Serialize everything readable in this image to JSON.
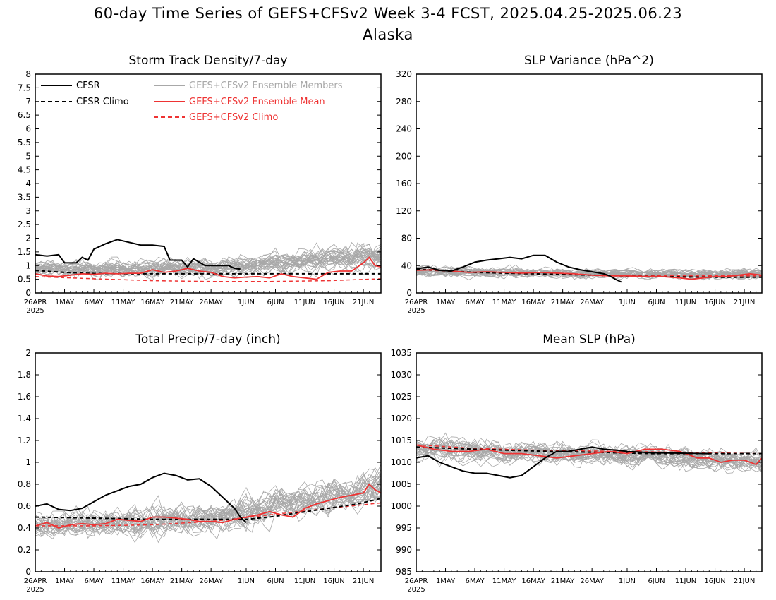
{
  "figure": {
    "title_line1": "60-day Time Series of GEFS+CFSv2 Week 3-4 FCST, 2025.04.25-2025.06.23",
    "title_line2": "Alaska"
  },
  "colors": {
    "cfsr": "#000000",
    "members": "#a8a8a8",
    "ens_mean": "#ee3333",
    "ens_climo": "#ee3333"
  },
  "legend": {
    "cfsr": "CFSR",
    "cfsr_climo": "CFSR Climo",
    "members": "GEFS+CFSv2 Ensemble Members",
    "ens_mean": "GEFS+CFSv2 Ensemble Mean",
    "ens_climo": "GEFS+CFSv2 Climo"
  },
  "x_ticks": [
    "26APR",
    "1MAY",
    "6MAY",
    "11MAY",
    "16MAY",
    "21MAY",
    "26MAY",
    "1JUN",
    "6JUN",
    "11JUN",
    "16JUN",
    "21JUN"
  ],
  "x_year_label": "2025",
  "chart_data": [
    {
      "type": "line",
      "title": "Storm Track Density/7-day",
      "xlabel": "",
      "ylabel": "",
      "x_range_days": [
        0,
        59
      ],
      "ylim": [
        0,
        8
      ],
      "yticks": [
        "0",
        "0.5",
        "1",
        "1.5",
        "2",
        "2.5",
        "3",
        "3.5",
        "4",
        "4.5",
        "5",
        "5.5",
        "6",
        "6.5",
        "7",
        "7.5",
        "8"
      ],
      "cfsr": [
        [
          0,
          1.4
        ],
        [
          2,
          1.35
        ],
        [
          4,
          1.4
        ],
        [
          5,
          1.1
        ],
        [
          7,
          1.1
        ],
        [
          8,
          1.3
        ],
        [
          9,
          1.2
        ],
        [
          10,
          1.6
        ],
        [
          12,
          1.8
        ],
        [
          14,
          1.95
        ],
        [
          16,
          1.85
        ],
        [
          18,
          1.75
        ],
        [
          20,
          1.75
        ],
        [
          22,
          1.7
        ],
        [
          23,
          1.2
        ],
        [
          25,
          1.2
        ],
        [
          26,
          0.95
        ],
        [
          27,
          1.25
        ],
        [
          29,
          1.0
        ],
        [
          33,
          1.0
        ],
        [
          34,
          0.9
        ],
        [
          35,
          0.87
        ]
      ],
      "cfsr_climo": [
        [
          0,
          0.82
        ],
        [
          5,
          0.75
        ],
        [
          10,
          0.71
        ],
        [
          20,
          0.7
        ],
        [
          30,
          0.7
        ],
        [
          45,
          0.7
        ],
        [
          59,
          0.7
        ]
      ],
      "ens_mean": [
        [
          0,
          0.7
        ],
        [
          2,
          0.62
        ],
        [
          4,
          0.6
        ],
        [
          6,
          0.65
        ],
        [
          8,
          0.7
        ],
        [
          10,
          0.68
        ],
        [
          12,
          0.72
        ],
        [
          14,
          0.7
        ],
        [
          16,
          0.72
        ],
        [
          18,
          0.72
        ],
        [
          20,
          0.85
        ],
        [
          22,
          0.75
        ],
        [
          24,
          0.8
        ],
        [
          26,
          0.9
        ],
        [
          28,
          0.8
        ],
        [
          30,
          0.75
        ],
        [
          32,
          0.6
        ],
        [
          34,
          0.55
        ],
        [
          36,
          0.58
        ],
        [
          38,
          0.6
        ],
        [
          40,
          0.55
        ],
        [
          42,
          0.7
        ],
        [
          44,
          0.6
        ],
        [
          46,
          0.55
        ],
        [
          48,
          0.5
        ],
        [
          50,
          0.75
        ],
        [
          52,
          0.8
        ],
        [
          54,
          0.8
        ],
        [
          56,
          1.1
        ],
        [
          57,
          1.3
        ],
        [
          58,
          1.0
        ],
        [
          59,
          0.95
        ]
      ],
      "ens_climo": [
        [
          0,
          0.6
        ],
        [
          10,
          0.52
        ],
        [
          20,
          0.45
        ],
        [
          30,
          0.42
        ],
        [
          40,
          0.42
        ],
        [
          50,
          0.45
        ],
        [
          59,
          0.52
        ]
      ],
      "members": {
        "count": 30,
        "center": [
          [
            0,
            0.9
          ],
          [
            30,
            0.9
          ],
          [
            59,
            1.4
          ]
        ],
        "spread": [
          [
            0,
            0.5
          ],
          [
            30,
            0.55
          ],
          [
            59,
            0.9
          ]
        ],
        "min": 0.05
      }
    },
    {
      "type": "line",
      "title": "SLP Variance (hPa^2)",
      "xlabel": "",
      "ylabel": "",
      "x_range_days": [
        0,
        59
      ],
      "ylim": [
        0,
        320
      ],
      "yticks": [
        "0",
        "40",
        "80",
        "120",
        "160",
        "200",
        "240",
        "280",
        "320"
      ],
      "cfsr": [
        [
          0,
          35
        ],
        [
          2,
          38
        ],
        [
          4,
          33
        ],
        [
          6,
          32
        ],
        [
          8,
          38
        ],
        [
          10,
          45
        ],
        [
          12,
          48
        ],
        [
          14,
          50
        ],
        [
          16,
          52
        ],
        [
          18,
          50
        ],
        [
          20,
          55
        ],
        [
          22,
          55
        ],
        [
          24,
          45
        ],
        [
          26,
          38
        ],
        [
          28,
          34
        ],
        [
          30,
          31
        ],
        [
          32,
          28
        ],
        [
          33,
          25
        ],
        [
          34,
          20
        ],
        [
          35,
          16
        ]
      ],
      "cfsr_climo": [
        [
          0,
          35
        ],
        [
          10,
          30
        ],
        [
          20,
          28
        ],
        [
          30,
          26
        ],
        [
          40,
          24
        ],
        [
          50,
          23
        ],
        [
          59,
          23
        ]
      ],
      "ens_mean": [
        [
          0,
          33
        ],
        [
          3,
          34
        ],
        [
          6,
          32
        ],
        [
          9,
          30
        ],
        [
          12,
          31
        ],
        [
          15,
          30
        ],
        [
          18,
          29
        ],
        [
          21,
          30
        ],
        [
          24,
          29
        ],
        [
          27,
          28
        ],
        [
          30,
          26
        ],
        [
          33,
          25
        ],
        [
          36,
          25
        ],
        [
          39,
          24
        ],
        [
          42,
          24
        ],
        [
          45,
          22
        ],
        [
          47,
          20
        ],
        [
          49,
          22
        ],
        [
          51,
          24
        ],
        [
          53,
          24
        ],
        [
          55,
          26
        ],
        [
          57,
          28
        ],
        [
          59,
          26
        ]
      ],
      "ens_climo": [
        [
          0,
          34
        ],
        [
          10,
          30
        ],
        [
          20,
          28
        ],
        [
          30,
          26
        ],
        [
          40,
          25
        ],
        [
          50,
          25
        ],
        [
          59,
          25
        ]
      ],
      "members": {
        "count": 30,
        "center": [
          [
            0,
            32
          ],
          [
            30,
            28
          ],
          [
            59,
            27
          ]
        ],
        "spread": [
          [
            0,
            14
          ],
          [
            30,
            12
          ],
          [
            59,
            14
          ]
        ],
        "min": 5
      }
    },
    {
      "type": "line",
      "title": "Total Precip/7-day (inch)",
      "xlabel": "",
      "ylabel": "",
      "x_range_days": [
        0,
        59
      ],
      "ylim": [
        0,
        2
      ],
      "yticks": [
        "0",
        "0.2",
        "0.4",
        "0.6",
        "0.8",
        "1",
        "1.2",
        "1.4",
        "1.6",
        "1.8",
        "2"
      ],
      "cfsr": [
        [
          0,
          0.6
        ],
        [
          2,
          0.62
        ],
        [
          4,
          0.57
        ],
        [
          6,
          0.56
        ],
        [
          8,
          0.58
        ],
        [
          10,
          0.64
        ],
        [
          12,
          0.7
        ],
        [
          14,
          0.74
        ],
        [
          16,
          0.78
        ],
        [
          18,
          0.8
        ],
        [
          20,
          0.86
        ],
        [
          22,
          0.9
        ],
        [
          24,
          0.88
        ],
        [
          26,
          0.84
        ],
        [
          28,
          0.85
        ],
        [
          30,
          0.78
        ],
        [
          32,
          0.68
        ],
        [
          34,
          0.58
        ],
        [
          35,
          0.5
        ],
        [
          36,
          0.45
        ]
      ],
      "cfsr_climo": [
        [
          0,
          0.5
        ],
        [
          10,
          0.49
        ],
        [
          20,
          0.48
        ],
        [
          30,
          0.48
        ],
        [
          36,
          0.48
        ],
        [
          40,
          0.5
        ],
        [
          45,
          0.54
        ],
        [
          50,
          0.58
        ],
        [
          55,
          0.62
        ],
        [
          59,
          0.67
        ]
      ],
      "ens_mean": [
        [
          0,
          0.42
        ],
        [
          2,
          0.45
        ],
        [
          4,
          0.4
        ],
        [
          6,
          0.43
        ],
        [
          8,
          0.44
        ],
        [
          10,
          0.43
        ],
        [
          12,
          0.44
        ],
        [
          14,
          0.48
        ],
        [
          16,
          0.47
        ],
        [
          18,
          0.46
        ],
        [
          20,
          0.5
        ],
        [
          22,
          0.5
        ],
        [
          24,
          0.49
        ],
        [
          26,
          0.48
        ],
        [
          28,
          0.46
        ],
        [
          30,
          0.46
        ],
        [
          32,
          0.45
        ],
        [
          34,
          0.48
        ],
        [
          36,
          0.5
        ],
        [
          38,
          0.52
        ],
        [
          40,
          0.55
        ],
        [
          42,
          0.52
        ],
        [
          44,
          0.5
        ],
        [
          46,
          0.58
        ],
        [
          48,
          0.62
        ],
        [
          50,
          0.65
        ],
        [
          52,
          0.68
        ],
        [
          54,
          0.7
        ],
        [
          56,
          0.72
        ],
        [
          57,
          0.8
        ],
        [
          58,
          0.75
        ],
        [
          59,
          0.72
        ]
      ],
      "ens_climo": [
        [
          0,
          0.42
        ],
        [
          10,
          0.42
        ],
        [
          20,
          0.43
        ],
        [
          30,
          0.46
        ],
        [
          40,
          0.52
        ],
        [
          50,
          0.58
        ],
        [
          59,
          0.63
        ]
      ],
      "members": {
        "count": 30,
        "center": [
          [
            0,
            0.42
          ],
          [
            30,
            0.48
          ],
          [
            59,
            0.78
          ]
        ],
        "spread": [
          [
            0,
            0.22
          ],
          [
            30,
            0.26
          ],
          [
            59,
            0.3
          ]
        ],
        "min": 0.05
      }
    },
    {
      "type": "line",
      "title": "Mean SLP (hPa)",
      "xlabel": "",
      "ylabel": "",
      "x_range_days": [
        0,
        59
      ],
      "ylim": [
        985,
        1035
      ],
      "yticks": [
        "985",
        "990",
        "995",
        "1000",
        "1005",
        "1010",
        "1015",
        "1020",
        "1025",
        "1030",
        "1035"
      ],
      "cfsr": [
        [
          0,
          1011
        ],
        [
          2,
          1011.5
        ],
        [
          4,
          1010
        ],
        [
          6,
          1009
        ],
        [
          8,
          1008
        ],
        [
          10,
          1007.5
        ],
        [
          12,
          1007.5
        ],
        [
          14,
          1007
        ],
        [
          16,
          1006.5
        ],
        [
          18,
          1007
        ],
        [
          20,
          1009
        ],
        [
          22,
          1011
        ],
        [
          24,
          1012.5
        ],
        [
          26,
          1012.5
        ],
        [
          28,
          1013
        ],
        [
          30,
          1013.5
        ],
        [
          32,
          1013
        ],
        [
          34,
          1012.8
        ],
        [
          36,
          1012.5
        ],
        [
          40,
          1012.2
        ],
        [
          45,
          1012.1
        ],
        [
          50,
          1012
        ]
      ],
      "cfsr_climo": [
        [
          0,
          1013.5
        ],
        [
          10,
          1013
        ],
        [
          20,
          1012.6
        ],
        [
          30,
          1012.3
        ],
        [
          40,
          1012
        ],
        [
          50,
          1012
        ],
        [
          59,
          1012
        ]
      ],
      "ens_mean": [
        [
          0,
          1014
        ],
        [
          3,
          1013
        ],
        [
          6,
          1012.5
        ],
        [
          9,
          1012.5
        ],
        [
          12,
          1013
        ],
        [
          15,
          1012
        ],
        [
          18,
          1012
        ],
        [
          21,
          1011.5
        ],
        [
          24,
          1011
        ],
        [
          27,
          1011.5
        ],
        [
          30,
          1012
        ],
        [
          33,
          1012.5
        ],
        [
          36,
          1012
        ],
        [
          39,
          1013
        ],
        [
          42,
          1013
        ],
        [
          45,
          1012.5
        ],
        [
          48,
          1011
        ],
        [
          50,
          1011
        ],
        [
          52,
          1010
        ],
        [
          54,
          1010.5
        ],
        [
          56,
          1010.5
        ],
        [
          58,
          1009.5
        ],
        [
          59,
          1011
        ]
      ],
      "ens_climo": [
        [
          0,
          1014
        ],
        [
          10,
          1013.2
        ],
        [
          20,
          1012.8
        ],
        [
          30,
          1012.6
        ],
        [
          40,
          1012.4
        ],
        [
          50,
          1012.2
        ],
        [
          59,
          1012
        ]
      ],
      "members": {
        "count": 30,
        "center": [
          [
            0,
            1013
          ],
          [
            30,
            1012
          ],
          [
            59,
            1010
          ]
        ],
        "spread": [
          [
            0,
            5
          ],
          [
            30,
            4
          ],
          [
            59,
            4
          ]
        ],
        "min": 985
      }
    }
  ]
}
